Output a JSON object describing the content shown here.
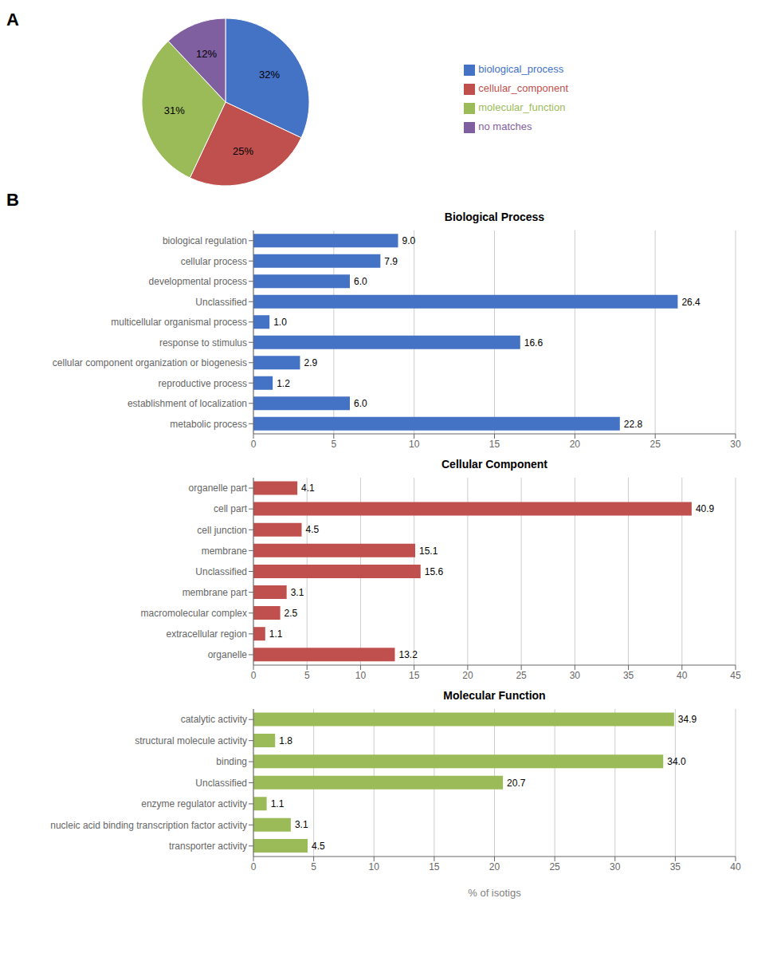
{
  "chart_data": [
    {
      "type": "pie",
      "annotations": [
        "A"
      ],
      "categories": [
        "biological_process",
        "cellular_component",
        "molecular_function",
        "no matches"
      ],
      "values": [
        32,
        25,
        31,
        12
      ],
      "value_labels": [
        "32%",
        "25%",
        "31%",
        "12%"
      ],
      "colors": [
        "#4472C4",
        "#C0504D",
        "#9BBB59",
        "#7F5FA0"
      ],
      "data_labels": true,
      "legend": "right"
    },
    {
      "type": "bar",
      "annotations": [
        "B"
      ],
      "title": "Biological Process",
      "orientation": "horizontal",
      "color": "#4472C4",
      "categories": [
        "biological regulation",
        "cellular process",
        "developmental process",
        "Unclassified",
        "multicellular organismal process",
        "response to stimulus",
        "cellular component organization or biogenesis",
        "reproductive process",
        "establishment of localization",
        "metabolic process"
      ],
      "values": [
        9.0,
        7.9,
        6.0,
        26.4,
        1.0,
        16.6,
        2.9,
        1.2,
        6.0,
        22.8
      ],
      "value_labels": [
        "9.0",
        "7.9",
        "6.0",
        "26.4",
        "1.0",
        "16.6",
        "2.9",
        "1.2",
        "6.0",
        "22.8"
      ],
      "xlim": [
        0,
        30
      ],
      "xticks": [
        0,
        5,
        10,
        15,
        20,
        25,
        30
      ],
      "grid": true,
      "data_labels": true
    },
    {
      "type": "bar",
      "title": "Cellular Component",
      "orientation": "horizontal",
      "color": "#C0504D",
      "categories": [
        "organelle part",
        "cell part",
        "cell junction",
        "membrane",
        "Unclassified",
        "membrane part",
        "macromolecular complex",
        "extracellular region",
        "organelle"
      ],
      "values": [
        4.1,
        40.9,
        4.5,
        15.1,
        15.6,
        3.1,
        2.5,
        1.1,
        13.2
      ],
      "value_labels": [
        "4.1",
        "40.9",
        "4.5",
        "15.1",
        "15.6",
        "3.1",
        "2.5",
        "1.1",
        "13.2"
      ],
      "xlim": [
        0,
        45
      ],
      "xticks": [
        0,
        5,
        10,
        15,
        20,
        25,
        30,
        35,
        40,
        45
      ],
      "grid": true,
      "data_labels": true
    },
    {
      "type": "bar",
      "title": "Molecular Function",
      "xlabel": "% of isotigs",
      "orientation": "horizontal",
      "color": "#9BBB59",
      "categories": [
        "catalytic activity",
        "structural molecule activity",
        "binding",
        "Unclassified",
        "enzyme regulator activity",
        "nucleic acid binding transcription factor activity",
        "transporter activity"
      ],
      "values": [
        34.9,
        1.8,
        34.0,
        20.7,
        1.1,
        3.1,
        4.5
      ],
      "value_labels": [
        "34.9",
        "1.8",
        "34.0",
        "20.7",
        "1.1",
        "3.1",
        "4.5"
      ],
      "xlim": [
        0,
        40
      ],
      "xticks": [
        0,
        5,
        10,
        15,
        20,
        25,
        30,
        35,
        40
      ],
      "grid": true,
      "data_labels": true
    }
  ]
}
